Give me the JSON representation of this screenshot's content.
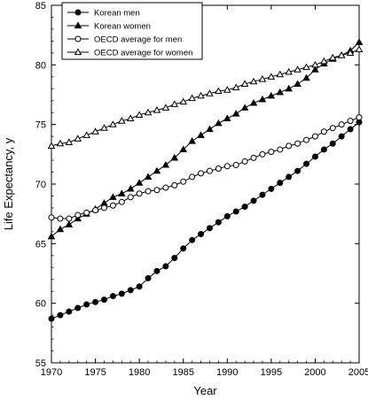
{
  "chart_data": {
    "type": "line",
    "title": "",
    "xlabel": "Year",
    "ylabel": "Life Expectancy, y",
    "xlim": [
      1970,
      2005
    ],
    "ylim": [
      55,
      85
    ],
    "x_ticks": [
      "1970",
      "1975",
      "1980",
      "1985",
      "1990",
      "1995",
      "2000",
      "2005"
    ],
    "y_ticks": [
      "55",
      "60",
      "65",
      "70",
      "75",
      "80",
      "85"
    ],
    "grid": false,
    "legend_position": "top-left",
    "x": [
      1970,
      1971,
      1972,
      1973,
      1974,
      1975,
      1976,
      1977,
      1978,
      1979,
      1980,
      1981,
      1982,
      1983,
      1984,
      1985,
      1986,
      1987,
      1988,
      1989,
      1990,
      1991,
      1992,
      1993,
      1994,
      1995,
      1996,
      1997,
      1998,
      1999,
      2000,
      2001,
      2002,
      2003,
      2004,
      2005
    ],
    "series": [
      {
        "name": "Korean men",
        "marker": "filled-circle",
        "values": [
          58.7,
          59.0,
          59.3,
          59.6,
          59.9,
          60.1,
          60.3,
          60.6,
          60.8,
          61.1,
          61.4,
          62.1,
          62.7,
          63.1,
          63.8,
          64.6,
          65.3,
          65.8,
          66.3,
          66.8,
          67.3,
          67.7,
          68.1,
          68.6,
          69.1,
          69.6,
          70.1,
          70.6,
          71.1,
          71.7,
          72.3,
          72.9,
          73.4,
          74.0,
          74.6,
          75.2
        ]
      },
      {
        "name": "Korean women",
        "marker": "filled-triangle",
        "values": [
          65.6,
          66.2,
          66.6,
          67.1,
          67.5,
          67.9,
          68.4,
          68.9,
          69.2,
          69.6,
          70.1,
          70.6,
          71.1,
          71.6,
          72.2,
          72.9,
          73.6,
          74.1,
          74.6,
          75.1,
          75.5,
          75.9,
          76.4,
          76.8,
          77.1,
          77.4,
          77.7,
          78.0,
          78.4,
          78.9,
          79.6,
          80.1,
          80.5,
          80.8,
          81.2,
          81.9
        ]
      },
      {
        "name": "OECD average for men",
        "marker": "open-circle",
        "values": [
          67.2,
          67.1,
          67.1,
          67.4,
          67.6,
          67.8,
          68.0,
          68.2,
          68.5,
          68.9,
          69.2,
          69.4,
          69.5,
          69.7,
          69.9,
          70.2,
          70.6,
          70.9,
          71.1,
          71.3,
          71.5,
          71.6,
          71.9,
          72.2,
          72.5,
          72.7,
          72.9,
          73.2,
          73.4,
          73.7,
          74.0,
          74.4,
          74.7,
          75.0,
          75.3,
          75.6
        ]
      },
      {
        "name": "OECD average for women",
        "marker": "open-triangle",
        "values": [
          73.2,
          73.4,
          73.5,
          73.8,
          74.1,
          74.4,
          74.7,
          75.0,
          75.3,
          75.5,
          75.8,
          76.0,
          76.2,
          76.4,
          76.7,
          76.9,
          77.2,
          77.4,
          77.6,
          77.8,
          77.9,
          78.1,
          78.4,
          78.6,
          78.8,
          79.0,
          79.2,
          79.4,
          79.6,
          79.8,
          80.0,
          80.3,
          80.6,
          80.8,
          81.0,
          81.3
        ]
      }
    ]
  }
}
